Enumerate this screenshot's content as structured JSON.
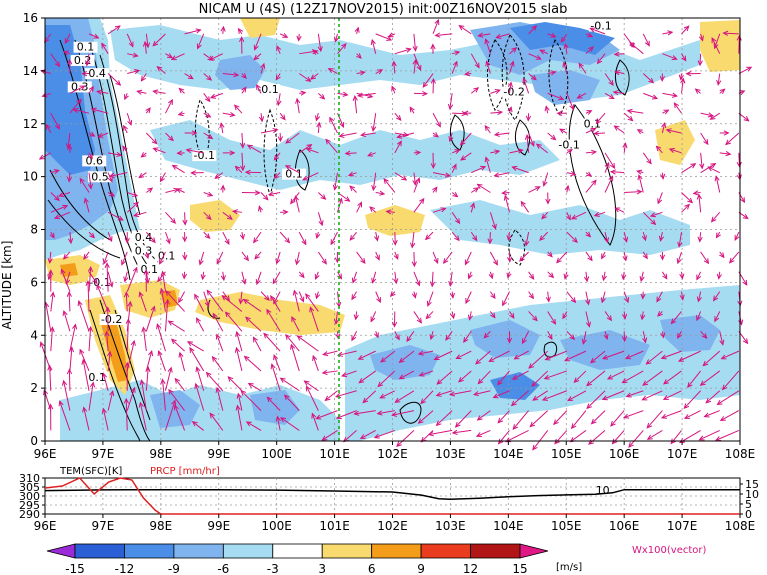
{
  "title": "NICAM U (4S) (12Z17NOV2015) init:00Z16NOV2015 slab",
  "chart_data": [
    {
      "type": "heatmap",
      "ylabel": "ALTITUDE [km]",
      "xlim": [
        96,
        108
      ],
      "ylim": [
        0,
        16
      ],
      "x_ticks": [
        "96E",
        "97E",
        "98E",
        "99E",
        "100E",
        "101E",
        "102E",
        "103E",
        "104E",
        "105E",
        "106E",
        "107E",
        "108E"
      ],
      "y_ticks": [
        "0",
        "2",
        "4",
        "6",
        "8",
        "10",
        "12",
        "14",
        "16"
      ],
      "grid": true,
      "marker_line_lon": 101,
      "contour_labels": [
        {
          "text": "0.1",
          "x": 96.7,
          "y": 14.8
        },
        {
          "text": "0.2",
          "x": 96.65,
          "y": 14.3
        },
        {
          "text": "0.4",
          "x": 96.9,
          "y": 13.8
        },
        {
          "text": "0.3",
          "x": 96.6,
          "y": 13.3
        },
        {
          "text": "0.6",
          "x": 96.85,
          "y": 10.5
        },
        {
          "text": "0.5",
          "x": 96.95,
          "y": 9.9
        },
        {
          "text": "0.4",
          "x": 97.7,
          "y": 7.6
        },
        {
          "text": "0.3",
          "x": 97.7,
          "y": 7.1
        },
        {
          "text": "0.1",
          "x": 98.1,
          "y": 6.9
        },
        {
          "text": "0.1",
          "x": 97.8,
          "y": 6.4
        },
        {
          "text": "-0.1",
          "x": 96.95,
          "y": 5.9
        },
        {
          "text": "-0.2",
          "x": 97.15,
          "y": 4.5
        },
        {
          "text": "0.1",
          "x": 96.9,
          "y": 2.3
        },
        {
          "text": "-0.1",
          "x": 99.85,
          "y": 13.2
        },
        {
          "text": "-0.1",
          "x": 98.75,
          "y": 10.7
        },
        {
          "text": "0.1",
          "x": 100.3,
          "y": 10.0
        },
        {
          "text": "-0.2",
          "x": 104.1,
          "y": 13.1
        },
        {
          "text": "0.1",
          "x": 105.45,
          "y": 11.9
        },
        {
          "text": "-0.1",
          "x": 105.05,
          "y": 11.1
        },
        {
          "text": "-0.1",
          "x": 105.6,
          "y": 15.6
        }
      ],
      "colorbar": {
        "levels": [
          "-15",
          "-12",
          "-9",
          "-6",
          "-3",
          "3",
          "6",
          "9",
          "12",
          "15"
        ],
        "colors": [
          "#9a2bd6",
          "#2a5fd6",
          "#4a8ee8",
          "#7fb4ee",
          "#a6dcf2",
          "#ffffff",
          "#f8da6e",
          "#f39d1a",
          "#ea3c1e",
          "#b11515",
          "#e01886"
        ],
        "unit": "[m/s]",
        "vector_label": "Wx100(vector)"
      },
      "vector_color": "#d6147f"
    },
    {
      "type": "line",
      "series": [
        {
          "name": "TEM(SFC)[K]",
          "color": "#000000",
          "axis": "left",
          "x": [
            96,
            96.5,
            97,
            97.5,
            98,
            99,
            100,
            101,
            102,
            102.5,
            102.8,
            103,
            103.5,
            104,
            104.5,
            105,
            105.5,
            105.8,
            106,
            107,
            108
          ],
          "y": [
            303,
            303.2,
            303.4,
            303.5,
            303.5,
            303.5,
            303.3,
            302.8,
            302.2,
            300.5,
            298.5,
            298.2,
            298.8,
            299.6,
            300.2,
            300.6,
            301.0,
            301.8,
            303.5,
            303.5,
            303.5
          ]
        },
        {
          "name": "PRCP [mm/hr]",
          "color": "#e02020",
          "axis": "right",
          "x": [
            96,
            96.3,
            96.6,
            96.85,
            97.1,
            97.3,
            97.5,
            97.7,
            97.9,
            98.0,
            98.2,
            99,
            100,
            101,
            102,
            103,
            104,
            105,
            106,
            107,
            108
          ],
          "y": [
            13,
            14,
            18,
            10,
            16,
            18,
            17,
            8,
            2,
            0,
            0,
            0,
            0,
            0,
            0,
            0,
            0,
            0,
            0,
            0,
            0
          ]
        }
      ],
      "left_ticks": [
        "310",
        "305",
        "300",
        "295",
        "290"
      ],
      "left_ylim": [
        290,
        310
      ],
      "right_ticks": [
        "15",
        "10",
        "5",
        "0"
      ],
      "right_ylim": [
        0,
        18
      ],
      "x_ticks": [
        "96E",
        "97E",
        "98E",
        "99E",
        "100E",
        "101E",
        "102E",
        "103E",
        "104E",
        "105E",
        "106E",
        "107E",
        "108E"
      ],
      "annotation": {
        "text": "10",
        "x": 105.75,
        "y": 12
      }
    }
  ]
}
